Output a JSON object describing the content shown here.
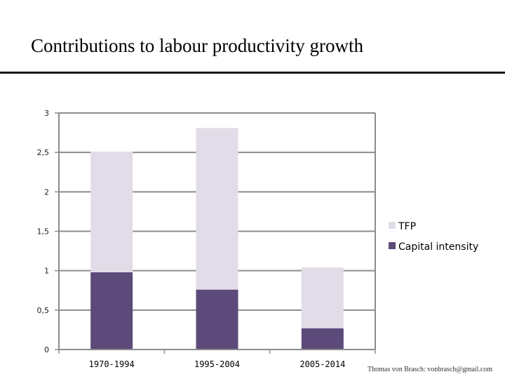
{
  "chart_data": {
    "type": "bar",
    "stacked": true,
    "title": "Contributions to labour productivity growth",
    "categories": [
      "1970-1994",
      "1995-2004",
      "2005-2014"
    ],
    "series": [
      {
        "name": "Capital intensity",
        "color": "#5c4a7a",
        "values": [
          0.98,
          0.76,
          0.27
        ]
      },
      {
        "name": "TFP",
        "color": "#e2dce8",
        "values": [
          1.53,
          2.05,
          0.77
        ]
      }
    ],
    "ylim": [
      0,
      3
    ],
    "yticks": [
      "0",
      "0,5",
      "1",
      "1,5",
      "2",
      "2,5",
      "3"
    ],
    "ytick_values": [
      0,
      0.5,
      1,
      1.5,
      2,
      2.5,
      3
    ],
    "grid": true,
    "legend_position": "right",
    "legend": [
      "TFP",
      "Capital intensity"
    ],
    "xlabel": "",
    "ylabel": ""
  },
  "footer": {
    "credit": "Thomas von Brasch: vonbrasch@gmail.com"
  }
}
